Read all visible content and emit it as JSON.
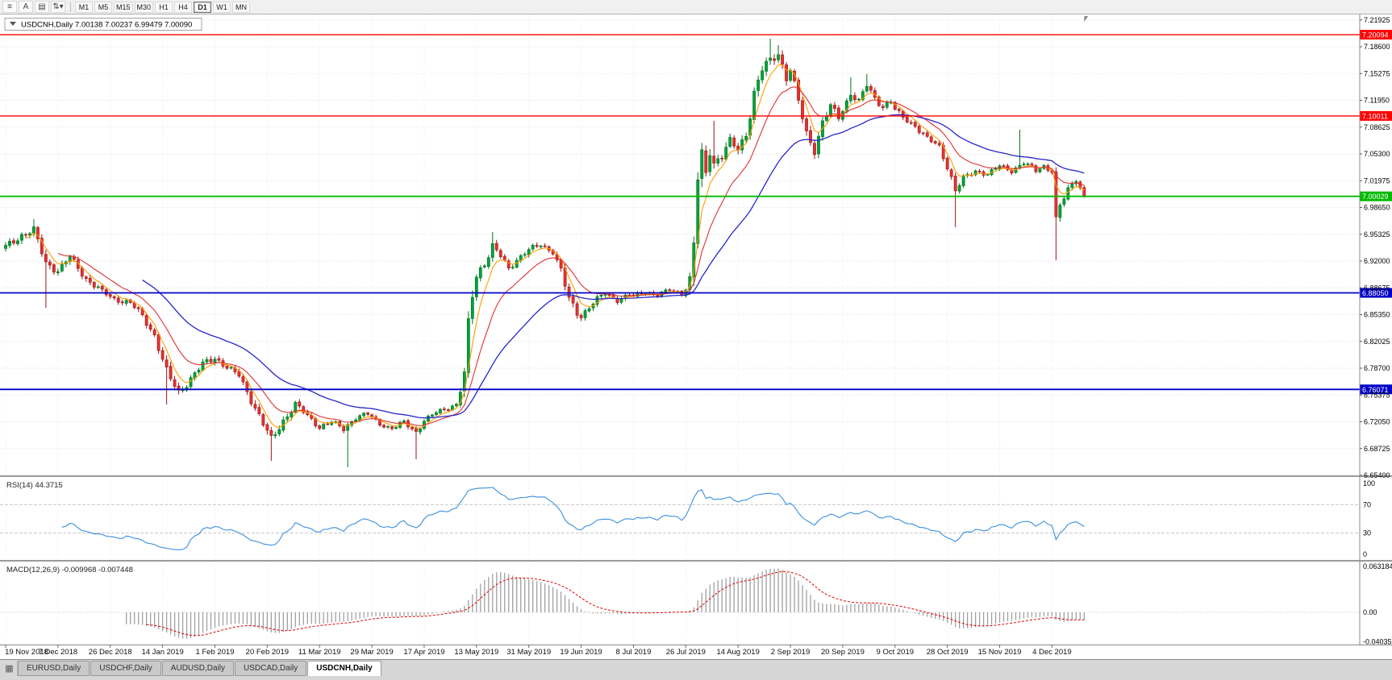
{
  "toolbar": {
    "icons": [
      {
        "name": "menu-icon",
        "glyph": "≡"
      },
      {
        "name": "letter-a-icon",
        "glyph": "A"
      },
      {
        "name": "template-icon",
        "glyph": "▤"
      },
      {
        "name": "symbols-dropdown-icon",
        "glyph": "⇅▾"
      }
    ],
    "timeframes": [
      {
        "label": "M1",
        "active": false
      },
      {
        "label": "M5",
        "active": false
      },
      {
        "label": "M15",
        "active": false
      },
      {
        "label": "M30",
        "active": false
      },
      {
        "label": "H1",
        "active": false
      },
      {
        "label": "H4",
        "active": false
      },
      {
        "label": "D1",
        "active": true
      },
      {
        "label": "W1",
        "active": false
      },
      {
        "label": "MN",
        "active": false
      }
    ]
  },
  "chart": {
    "title_full": "USDCNH,Daily  7.00138 7.00237 6.99479 7.00090"
  },
  "rsi_panel": {
    "label": "RSI(14) 44.3715"
  },
  "macd_panel": {
    "label": "MACD(12,26,9) -0.009968 -0.007448"
  },
  "tabs": {
    "strip_icon": "▦",
    "items": [
      {
        "label": "EURUSD,Daily",
        "active": false
      },
      {
        "label": "USDCHF,Daily",
        "active": false
      },
      {
        "label": "AUDUSD,Daily",
        "active": false
      },
      {
        "label": "USDCAD,Daily",
        "active": false
      },
      {
        "label": "USDCNH,Daily",
        "active": true
      }
    ]
  },
  "chart_data": {
    "type": "candlestick",
    "symbol": "USDCNH",
    "timeframe": "Daily",
    "ohlc": {
      "open": "7.00138",
      "high": "7.00237",
      "low": "6.99479",
      "close": "7.00090"
    },
    "bars": 269,
    "last_close": 7.0009,
    "price_range": {
      "max": 7.228,
      "min": 6.654
    },
    "y_ticks": [
      "7.21925",
      "7.18600",
      "7.15275",
      "7.11950",
      "7.08625",
      "7.05300",
      "7.01975",
      "6.98650",
      "6.95325",
      "6.92000",
      "6.88675",
      "6.85350",
      "6.82025",
      "6.78700",
      "6.75375",
      "6.72050",
      "6.68725",
      "6.65400"
    ],
    "x_label_interval": 13,
    "x_labels": [
      "19 Nov 2018",
      "7 Dec 2018",
      "26 Dec 2018",
      "14 Jan 2019",
      "1 Feb 2019",
      "20 Feb 2019",
      "11 Mar 2019",
      "29 Mar 2019",
      "17 Apr 2019",
      "13 May 2019",
      "31 May 2019",
      "19 Jun 2019",
      "8 Jul 2019",
      "26 Jul 2019",
      "14 Aug 2019",
      "2 Sep 2019",
      "20 Sep 2019",
      "9 Oct 2019",
      "28 Oct 2019",
      "15 Nov 2019",
      "4 Dec 2019"
    ],
    "hlines": [
      {
        "price": 7.20094,
        "label": "7.20094",
        "color": "#ff0000",
        "width": 1.4
      },
      {
        "price": 7.10011,
        "label": "7.10011",
        "color": "#ff0000",
        "width": 1.4
      },
      {
        "price": 7.00029,
        "label": "7.00029",
        "color": "#00bb00",
        "width": 1.8
      },
      {
        "price": 6.8805,
        "label": "6.88050",
        "color": "#0000c8",
        "width": 1.8
      },
      {
        "price": 6.76071,
        "label": "6.76071",
        "color": "#0000c8",
        "width": 1.8
      }
    ],
    "up_color": "#00a23a",
    "up_edge": "#00731f",
    "down_color": "#e63232",
    "down_edge": "#9c1414",
    "moving_averages": [
      {
        "period": 5,
        "color": "#ff9c00",
        "width": 1.1
      },
      {
        "period": 13,
        "color": "#e03131",
        "width": 1.1
      },
      {
        "period": 34,
        "color": "#2626cc",
        "width": 1.3
      }
    ],
    "close_waypoints": [
      [
        0,
        6.938,
        0.006
      ],
      [
        4,
        6.952,
        0.007
      ],
      [
        7,
        6.958,
        0.007
      ],
      [
        10,
        6.918,
        0.008
      ],
      [
        13,
        6.908,
        0.007
      ],
      [
        16,
        6.925,
        0.006
      ],
      [
        20,
        6.898,
        0.006
      ],
      [
        24,
        6.882,
        0.005
      ],
      [
        27,
        6.873,
        0.005
      ],
      [
        31,
        6.868,
        0.005
      ],
      [
        34,
        6.852,
        0.006
      ],
      [
        37,
        6.828,
        0.007
      ],
      [
        40,
        6.782,
        0.009
      ],
      [
        43,
        6.757,
        0.008
      ],
      [
        46,
        6.774,
        0.007
      ],
      [
        49,
        6.792,
        0.006
      ],
      [
        52,
        6.8,
        0.006
      ],
      [
        55,
        6.788,
        0.005
      ],
      [
        58,
        6.778,
        0.005
      ],
      [
        61,
        6.748,
        0.007
      ],
      [
        64,
        6.718,
        0.008
      ],
      [
        66,
        6.698,
        0.008
      ],
      [
        69,
        6.722,
        0.007
      ],
      [
        72,
        6.742,
        0.006
      ],
      [
        75,
        6.728,
        0.005
      ],
      [
        78,
        6.714,
        0.005
      ],
      [
        81,
        6.72,
        0.004
      ],
      [
        84,
        6.712,
        0.006
      ],
      [
        87,
        6.726,
        0.005
      ],
      [
        90,
        6.73,
        0.004
      ],
      [
        93,
        6.718,
        0.004
      ],
      [
        96,
        6.712,
        0.004
      ],
      [
        99,
        6.72,
        0.004
      ],
      [
        102,
        6.708,
        0.006
      ],
      [
        104,
        6.722,
        0.004
      ],
      [
        107,
        6.732,
        0.004
      ],
      [
        110,
        6.738,
        0.004
      ],
      [
        112,
        6.742,
        0.004
      ],
      [
        114,
        6.778,
        0.012
      ],
      [
        115,
        6.838,
        0.016
      ],
      [
        116,
        6.878,
        0.014
      ],
      [
        117,
        6.902,
        0.01
      ],
      [
        119,
        6.918,
        0.008
      ],
      [
        121,
        6.938,
        0.008
      ],
      [
        123,
        6.926,
        0.006
      ],
      [
        125,
        6.91,
        0.006
      ],
      [
        127,
        6.922,
        0.005
      ],
      [
        130,
        6.934,
        0.005
      ],
      [
        133,
        6.94,
        0.005
      ],
      [
        136,
        6.932,
        0.005
      ],
      [
        138,
        6.908,
        0.008
      ],
      [
        140,
        6.872,
        0.009
      ],
      [
        142,
        6.856,
        0.007
      ],
      [
        143,
        6.852,
        0.006
      ],
      [
        146,
        6.868,
        0.006
      ],
      [
        149,
        6.88,
        0.005
      ],
      [
        152,
        6.872,
        0.005
      ],
      [
        155,
        6.878,
        0.004
      ],
      [
        156,
        6.876,
        0.004
      ],
      [
        159,
        6.882,
        0.004
      ],
      [
        162,
        6.878,
        0.004
      ],
      [
        165,
        6.884,
        0.004
      ],
      [
        168,
        6.88,
        0.004
      ],
      [
        169,
        6.886,
        0.005
      ],
      [
        170,
        6.898,
        0.007
      ],
      [
        171,
        6.942,
        0.018
      ],
      [
        172,
        7.022,
        0.022
      ],
      [
        173,
        7.048,
        0.016
      ],
      [
        174,
        7.028,
        0.012
      ],
      [
        175,
        7.058,
        0.012
      ],
      [
        176,
        7.042,
        0.01
      ],
      [
        178,
        7.052,
        0.009
      ],
      [
        180,
        7.068,
        0.008
      ],
      [
        182,
        7.058,
        0.008
      ],
      [
        184,
        7.078,
        0.008
      ],
      [
        186,
        7.128,
        0.012
      ],
      [
        188,
        7.158,
        0.01
      ],
      [
        190,
        7.168,
        0.009
      ],
      [
        192,
        7.178,
        0.008
      ],
      [
        194,
        7.148,
        0.009
      ],
      [
        195,
        7.158,
        0.008
      ],
      [
        197,
        7.118,
        0.009
      ],
      [
        199,
        7.078,
        0.009
      ],
      [
        201,
        7.058,
        0.008
      ],
      [
        203,
        7.092,
        0.008
      ],
      [
        205,
        7.112,
        0.007
      ],
      [
        207,
        7.098,
        0.006
      ],
      [
        208,
        7.108,
        0.006
      ],
      [
        210,
        7.128,
        0.006
      ],
      [
        212,
        7.118,
        0.006
      ],
      [
        214,
        7.138,
        0.006
      ],
      [
        216,
        7.122,
        0.006
      ],
      [
        218,
        7.112,
        0.006
      ],
      [
        220,
        7.118,
        0.005
      ],
      [
        221,
        7.108,
        0.005
      ],
      [
        223,
        7.098,
        0.005
      ],
      [
        226,
        7.088,
        0.005
      ],
      [
        229,
        7.072,
        0.005
      ],
      [
        232,
        7.062,
        0.005
      ],
      [
        234,
        7.038,
        0.007
      ],
      [
        236,
        7.008,
        0.009
      ],
      [
        238,
        7.022,
        0.006
      ],
      [
        241,
        7.032,
        0.005
      ],
      [
        244,
        7.028,
        0.004
      ],
      [
        247,
        7.038,
        0.004
      ],
      [
        250,
        7.032,
        0.004
      ],
      [
        253,
        7.042,
        0.005
      ],
      [
        256,
        7.032,
        0.004
      ],
      [
        258,
        7.038,
        0.004
      ],
      [
        260,
        7.032,
        0.005
      ],
      [
        261,
        6.968,
        0.014
      ],
      [
        262,
        6.988,
        0.008
      ],
      [
        264,
        7.008,
        0.006
      ],
      [
        266,
        7.022,
        0.005
      ],
      [
        268,
        7.001,
        0.005
      ]
    ],
    "wick_events": [
      [
        7,
        "H",
        6.972
      ],
      [
        10,
        "L",
        6.862
      ],
      [
        40,
        "L",
        6.742
      ],
      [
        66,
        "L",
        6.672
      ],
      [
        85,
        "L",
        6.664
      ],
      [
        102,
        "L",
        6.674
      ],
      [
        121,
        "H",
        6.956
      ],
      [
        173,
        "H",
        7.065
      ],
      [
        176,
        "H",
        7.094
      ],
      [
        190,
        "H",
        7.196
      ],
      [
        192,
        "H",
        7.188
      ],
      [
        210,
        "H",
        7.148
      ],
      [
        214,
        "H",
        7.152
      ],
      [
        236,
        "L",
        6.962
      ],
      [
        252,
        "H",
        7.083
      ],
      [
        261,
        "L",
        6.921
      ]
    ],
    "indicators": {
      "rsi": {
        "period": 14,
        "value": "44.3715",
        "levels": [
          70,
          30
        ],
        "axis": [
          "100",
          "70",
          "30",
          "0"
        ],
        "color": "#3b8fe0"
      },
      "macd": {
        "fast": 12,
        "slow": 26,
        "signal": 9,
        "values": "-0.009968 -0.007448",
        "axis": [
          "0.063184",
          "0.00",
          "-0.040359"
        ],
        "hist_color": "#a0a0a0",
        "signal_color": "#e00000"
      }
    }
  }
}
